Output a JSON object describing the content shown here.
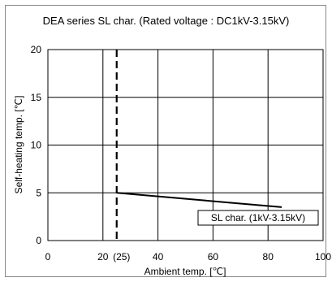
{
  "chart_data": {
    "type": "line",
    "title": "DEA series SL char. (Rated voltage : DC1kV-3.15kV)",
    "xlabel": "Ambient temp. [℃]",
    "ylabel": "Self-heating temp. [℃]",
    "xlim": [
      0,
      100
    ],
    "ylim": [
      0,
      20
    ],
    "xticks": [
      "0",
      "20",
      "40",
      "60",
      "80",
      "100"
    ],
    "yticks": [
      "0",
      "5",
      "10",
      "15",
      "20"
    ],
    "extra_xtick": "(25)",
    "grid": true,
    "reference_line": {
      "x": 25,
      "style": "dashed"
    },
    "series": [
      {
        "name": "SL char. (1kV-3.15kV)",
        "x": [
          25,
          85
        ],
        "y": [
          5.0,
          3.5
        ]
      }
    ]
  }
}
